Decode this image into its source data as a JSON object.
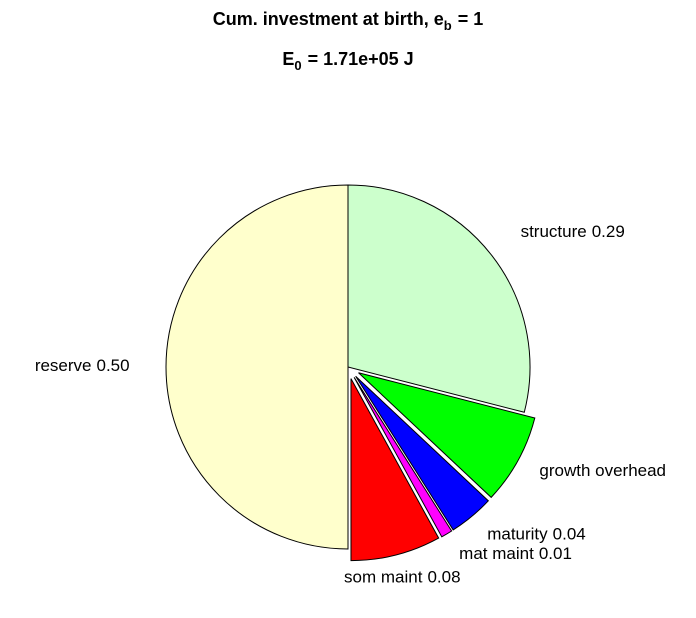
{
  "chart_data": {
    "type": "pie",
    "title": [
      "Cum. investment at birth, e",
      "b",
      "= 1"
    ],
    "subtitle": [
      "E",
      "0",
      "= 1.71e+05 J"
    ],
    "categories": [
      "structure",
      "growth overhead",
      "maturity",
      "mat maint",
      "som maint",
      "reserve"
    ],
    "values": [
      0.29,
      0.08,
      0.04,
      0.01,
      0.08,
      0.5
    ],
    "value_labels": [
      "0.29",
      null,
      "0.04",
      "0.01",
      "0.08",
      "0.50"
    ],
    "colors": [
      "#ccffcc",
      "#00ff00",
      "#0000ff",
      "#ff00ff",
      "#ff0000",
      "#ffffcc"
    ],
    "explode": [
      false,
      true,
      true,
      true,
      true,
      false
    ]
  }
}
